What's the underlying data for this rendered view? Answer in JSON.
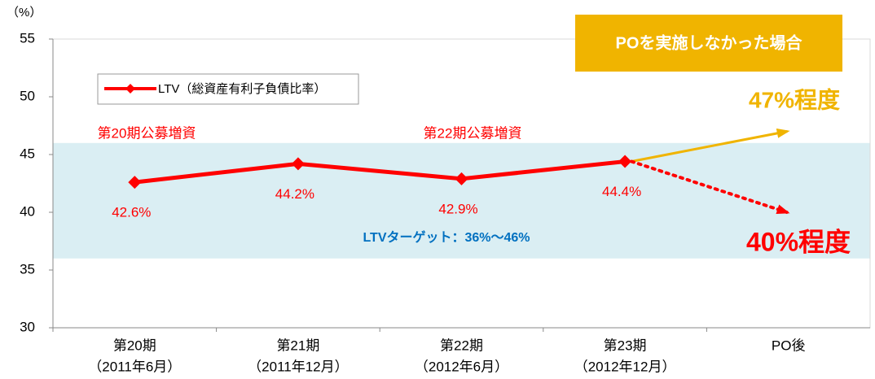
{
  "chart_data": {
    "type": "line",
    "unit_label": "（%）",
    "categories": [
      "第20期",
      "第21期",
      "第22期",
      "第23期",
      "PO後"
    ],
    "category_periods": [
      "（2011年6月）",
      "（2011年12月）",
      "（2012年6月）",
      "（2012年12月）",
      null
    ],
    "series": [
      {
        "name": "LTV（総資産有利子負債比率）",
        "color": "#ff0000",
        "values": [
          42.6,
          44.2,
          42.9,
          44.4,
          null
        ],
        "value_labels": [
          "42.6%",
          "44.2%",
          "42.9%",
          "44.4%",
          null
        ]
      }
    ],
    "ylim": [
      30,
      55
    ],
    "yticks": [
      30,
      35,
      40,
      45,
      50,
      55
    ],
    "target_band": {
      "label": "LTVターゲット：36%～46%",
      "range": [
        36,
        46
      ],
      "color": "#daeef3"
    },
    "annotations": [
      "第20期公募増資",
      "第22期公募増資"
    ],
    "scenario_box": {
      "text": "POを実施しなかった場合",
      "color": "#f0b400"
    },
    "projections": [
      {
        "label": "47%程度",
        "value": 47,
        "color": "#f0b400"
      },
      {
        "label": "40%程度",
        "value": 40,
        "color": "#ff0000"
      }
    ],
    "grid": false
  }
}
